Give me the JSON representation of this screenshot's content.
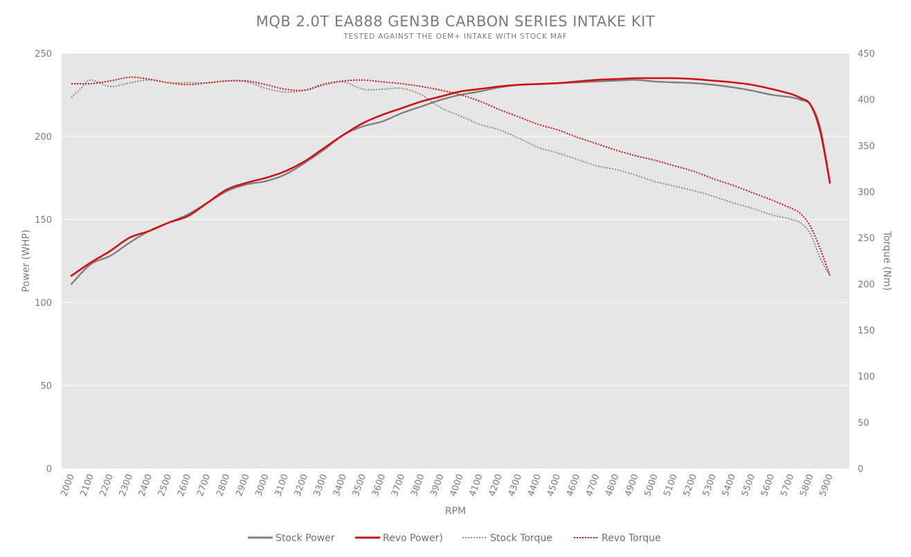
{
  "chart_data": {
    "type": "line",
    "title": "MQB 2.0T EA888 GEN3B CARBON SERIES INTAKE KIT",
    "subtitle": "TESTED AGAINST THE OEM+ INTAKE WITH STOCK MAF",
    "xlabel": "RPM",
    "ylabel_left": "Power (WHP)",
    "ylabel_right": "Torque (Nm)",
    "x_ticks": [
      2000,
      2100,
      2200,
      2300,
      2400,
      2500,
      2600,
      2700,
      2800,
      2900,
      3000,
      3100,
      3200,
      3300,
      3400,
      3500,
      3600,
      3700,
      3800,
      3900,
      4000,
      4100,
      4200,
      4300,
      4400,
      4500,
      4600,
      4700,
      4800,
      4900,
      5000,
      5100,
      5200,
      5300,
      5400,
      5500,
      5600,
      5700,
      5800,
      5900
    ],
    "xlim": [
      1950,
      6000
    ],
    "ylim_left": [
      0,
      250
    ],
    "ylim_right": [
      0,
      450
    ],
    "y_ticks_left": [
      0,
      50,
      100,
      150,
      200,
      250
    ],
    "y_ticks_right": [
      0,
      50,
      100,
      150,
      200,
      250,
      300,
      350,
      400,
      450
    ],
    "grid": true,
    "legend_position": "bottom",
    "colors": {
      "plot_background": "#e6e6e6",
      "gridline": "#ffffff",
      "stock": "#7f7f7f",
      "revo": "#d11010",
      "text": "#7a7a7a"
    },
    "series": [
      {
        "name": "Stock Power",
        "axis": "left",
        "style": "solid",
        "color": "#7f7f7f",
        "x": [
          2000,
          2100,
          2200,
          2300,
          2400,
          2500,
          2600,
          2700,
          2800,
          2900,
          3000,
          3100,
          3200,
          3300,
          3400,
          3500,
          3600,
          3700,
          3800,
          3900,
          4000,
          4100,
          4200,
          4300,
          4400,
          4500,
          4600,
          4700,
          4800,
          4900,
          5000,
          5100,
          5200,
          5300,
          5400,
          5500,
          5600,
          5700,
          5750,
          5800,
          5850,
          5900
        ],
        "y": [
          111,
          123,
          128,
          136,
          143,
          148,
          153,
          160,
          167,
          171,
          173,
          177,
          184,
          192,
          201,
          206,
          209,
          214,
          218,
          222,
          225,
          227,
          229.5,
          231,
          231.5,
          232,
          232.5,
          233,
          233.5,
          234,
          233,
          232.5,
          232,
          231,
          229.5,
          227.5,
          225,
          223.5,
          222,
          219,
          205,
          172
        ]
      },
      {
        "name": "Revo Power)",
        "axis": "left",
        "style": "solid",
        "color": "#d11010",
        "x": [
          2000,
          2100,
          2200,
          2300,
          2400,
          2500,
          2600,
          2700,
          2800,
          2900,
          3000,
          3100,
          3200,
          3300,
          3400,
          3500,
          3600,
          3700,
          3800,
          3900,
          4000,
          4100,
          4200,
          4300,
          4400,
          4500,
          4600,
          4700,
          4800,
          4900,
          5000,
          5100,
          5200,
          5300,
          5400,
          5500,
          5600,
          5700,
          5750,
          5800,
          5850,
          5900
        ],
        "y": [
          116,
          124,
          131,
          139,
          143,
          148,
          152,
          160,
          168,
          172,
          175,
          179,
          185,
          193,
          201,
          208,
          213,
          217,
          221,
          224,
          227,
          228.5,
          230,
          231,
          231.5,
          232,
          233,
          234,
          234.5,
          235,
          235,
          235,
          234.5,
          233.5,
          232.5,
          231,
          228.5,
          225.5,
          223,
          219,
          203,
          172
        ]
      },
      {
        "name": "Stock Torque",
        "axis": "right",
        "style": "dotted",
        "color": "#8a8a8a",
        "x": [
          2000,
          2050,
          2100,
          2200,
          2300,
          2400,
          2500,
          2600,
          2700,
          2800,
          2900,
          3000,
          3100,
          3200,
          3300,
          3400,
          3500,
          3600,
          3700,
          3800,
          3900,
          4000,
          4100,
          4200,
          4300,
          4400,
          4500,
          4600,
          4700,
          4800,
          4900,
          5000,
          5100,
          5200,
          5300,
          5400,
          5500,
          5600,
          5700,
          5750,
          5800,
          5850,
          5900
        ],
        "y": [
          402,
          412,
          421,
          414,
          418,
          421,
          418,
          418,
          418,
          420,
          419,
          412,
          408,
          410,
          417,
          419,
          411,
          411,
          412,
          405,
          391,
          382,
          373,
          367,
          358,
          348,
          342,
          335,
          328,
          324,
          318,
          311,
          306,
          301,
          295,
          288,
          282,
          275,
          270,
          266,
          254,
          228,
          209
        ]
      },
      {
        "name": "Revo Torque",
        "axis": "right",
        "style": "dotted",
        "color": "#d11010",
        "x": [
          2000,
          2050,
          2100,
          2200,
          2300,
          2400,
          2500,
          2600,
          2700,
          2800,
          2900,
          3000,
          3100,
          3200,
          3300,
          3400,
          3500,
          3600,
          3700,
          3800,
          3900,
          4000,
          4100,
          4200,
          4300,
          4400,
          4500,
          4600,
          4700,
          4800,
          4900,
          5000,
          5100,
          5200,
          5300,
          5400,
          5500,
          5600,
          5700,
          5750,
          5800,
          5850,
          5900
        ],
        "y": [
          417,
          417,
          417,
          420,
          424,
          422,
          418,
          416,
          418,
          420,
          420,
          416,
          411,
          410,
          416,
          420,
          421,
          419,
          417,
          414,
          410,
          405,
          398,
          389,
          381,
          373,
          367,
          359,
          352,
          345,
          339,
          334,
          328,
          322,
          314,
          307,
          299,
          291,
          282,
          276,
          262,
          238,
          209
        ]
      }
    ]
  }
}
